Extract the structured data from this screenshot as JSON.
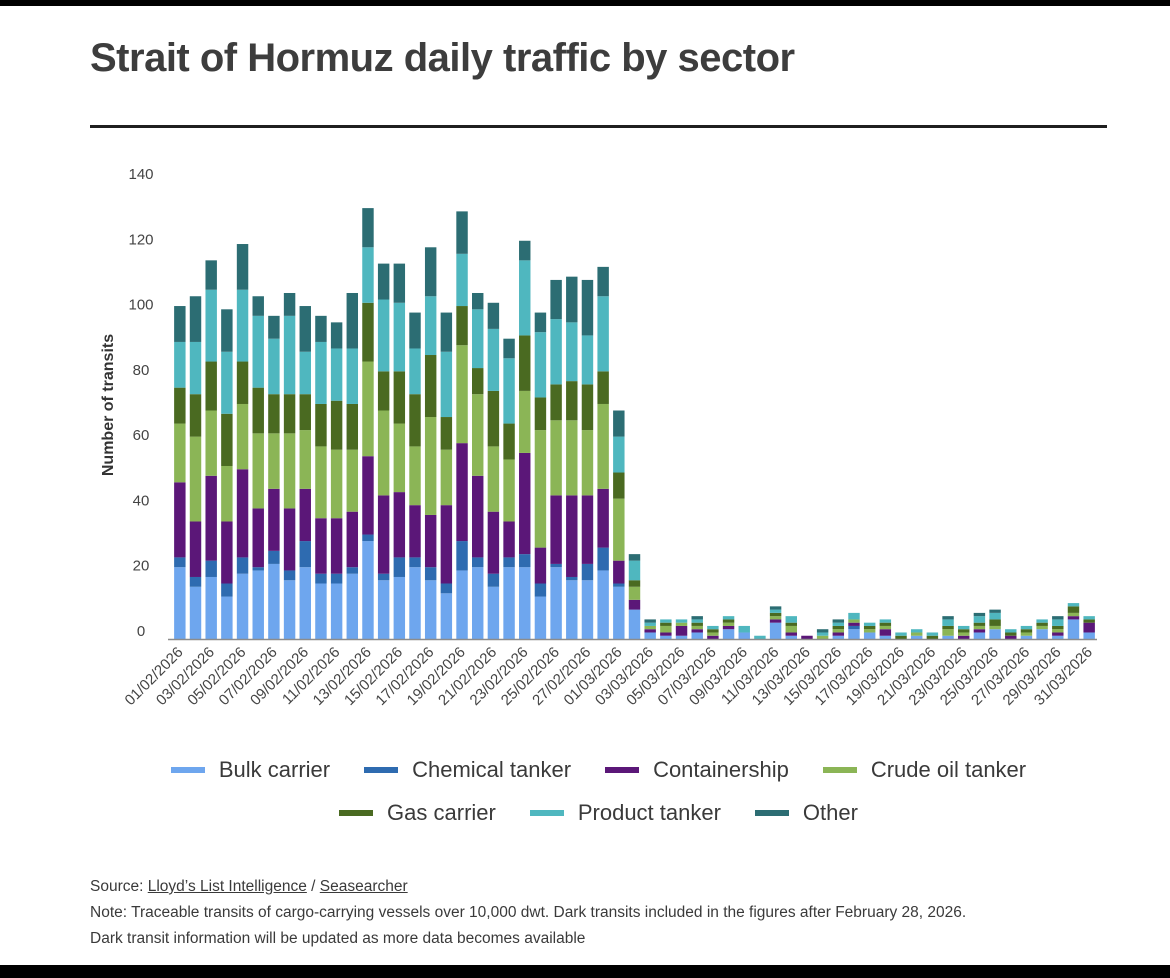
{
  "title": "Strait of Hormuz daily traffic by sector",
  "chart_data": {
    "type": "bar",
    "stacked": true,
    "title": "Strait of Hormuz daily traffic by sector",
    "xlabel": "",
    "ylabel": "Number of transits",
    "ylim": [
      0,
      140
    ],
    "yticks": [
      0,
      20,
      40,
      60,
      80,
      100,
      120,
      140
    ],
    "legend_position": "bottom",
    "categories": [
      "01/02/2026",
      "02/02/2026",
      "03/02/2026",
      "04/02/2026",
      "05/02/2026",
      "06/02/2026",
      "07/02/2026",
      "08/02/2026",
      "09/02/2026",
      "10/02/2026",
      "11/02/2026",
      "12/02/2026",
      "13/02/2026",
      "14/02/2026",
      "15/02/2026",
      "16/02/2026",
      "17/02/2026",
      "18/02/2026",
      "19/02/2026",
      "20/02/2026",
      "21/02/2026",
      "22/02/2026",
      "23/02/2026",
      "24/02/2026",
      "25/02/2026",
      "26/02/2026",
      "27/02/2026",
      "28/02/2026",
      "01/03/2026",
      "02/03/2026",
      "03/03/2026",
      "04/03/2026",
      "05/03/2026",
      "06/03/2026",
      "07/03/2026",
      "08/03/2026",
      "09/03/2026",
      "10/03/2026",
      "11/03/2026",
      "12/03/2026",
      "13/03/2026",
      "14/03/2026",
      "15/03/2026",
      "16/03/2026",
      "17/03/2026",
      "18/03/2026",
      "19/03/2026",
      "20/03/2026",
      "21/03/2026",
      "22/03/2026",
      "23/03/2026",
      "24/03/2026",
      "25/03/2026",
      "26/03/2026",
      "27/03/2026",
      "28/03/2026",
      "29/03/2026",
      "30/03/2026",
      "31/03/2026"
    ],
    "tick_labels": [
      "01/02/2026",
      "03/02/2026",
      "05/02/2026",
      "07/02/2026",
      "09/02/2026",
      "11/02/2026",
      "13/02/2026",
      "15/02/2026",
      "17/02/2026",
      "19/02/2026",
      "21/02/2026",
      "23/02/2026",
      "25/02/2026",
      "27/02/2026",
      "01/03/2026",
      "03/03/2026",
      "05/03/2026",
      "07/03/2026",
      "09/03/2026",
      "11/03/2026",
      "13/03/2026",
      "15/03/2026",
      "17/03/2026",
      "19/03/2026",
      "21/03/2026",
      "23/03/2026",
      "25/03/2026",
      "27/03/2026",
      "29/03/2026",
      "31/03/2026"
    ],
    "series": [
      {
        "name": "Bulk carrier",
        "color": "#6ea6ee",
        "values": [
          22,
          16,
          19,
          13,
          20,
          21,
          23,
          18,
          22,
          17,
          17,
          20,
          30,
          18,
          19,
          22,
          18,
          14,
          21,
          22,
          16,
          22,
          22,
          13,
          22,
          18,
          18,
          21,
          16,
          9,
          2,
          1,
          1,
          2,
          0,
          3,
          2,
          0,
          5,
          1,
          0,
          0,
          1,
          3,
          2,
          1,
          0,
          1,
          0,
          1,
          0,
          2,
          3,
          0,
          1,
          3,
          1,
          6,
          2
        ]
      },
      {
        "name": "Chemical tanker",
        "color": "#2e6bb0",
        "values": [
          3,
          3,
          5,
          4,
          5,
          1,
          4,
          3,
          8,
          3,
          3,
          2,
          2,
          2,
          6,
          3,
          4,
          3,
          9,
          3,
          4,
          3,
          4,
          4,
          1,
          1,
          5,
          7,
          1,
          0,
          0,
          0,
          0,
          0,
          0,
          0,
          0,
          0,
          0,
          0,
          0,
          0,
          0,
          1,
          0,
          0,
          0,
          0,
          0,
          0,
          0,
          0,
          0,
          0,
          0,
          0,
          0,
          0,
          0
        ]
      },
      {
        "name": "Containership",
        "color": "#5b1778",
        "values": [
          23,
          17,
          26,
          19,
          27,
          18,
          19,
          19,
          16,
          17,
          17,
          17,
          24,
          24,
          20,
          16,
          16,
          24,
          30,
          25,
          19,
          11,
          31,
          11,
          21,
          25,
          21,
          18,
          7,
          3,
          1,
          1,
          3,
          1,
          1,
          1,
          0,
          0,
          1,
          1,
          1,
          0,
          1,
          1,
          0,
          2,
          0,
          0,
          0,
          0,
          1,
          1,
          0,
          1,
          0,
          0,
          1,
          1,
          3
        ]
      },
      {
        "name": "Crude oil tanker",
        "color": "#8bb556",
        "values": [
          18,
          26,
          20,
          17,
          20,
          23,
          17,
          23,
          18,
          22,
          21,
          19,
          29,
          26,
          21,
          18,
          30,
          17,
          30,
          25,
          20,
          19,
          19,
          36,
          23,
          23,
          20,
          26,
          19,
          4,
          1,
          2,
          1,
          1,
          1,
          1,
          0,
          0,
          1,
          2,
          0,
          1,
          1,
          1,
          1,
          1,
          0,
          1,
          0,
          2,
          1,
          1,
          1,
          0,
          1,
          1,
          1,
          1,
          0
        ]
      },
      {
        "name": "Gas carrier",
        "color": "#4a6a21",
        "values": [
          11,
          13,
          15,
          16,
          13,
          14,
          12,
          12,
          11,
          13,
          15,
          14,
          18,
          12,
          16,
          16,
          19,
          10,
          12,
          8,
          17,
          11,
          17,
          10,
          11,
          12,
          14,
          10,
          8,
          2,
          0,
          1,
          0,
          1,
          1,
          1,
          0,
          0,
          1,
          1,
          0,
          0,
          1,
          0,
          1,
          1,
          1,
          0,
          1,
          1,
          1,
          1,
          2,
          1,
          1,
          1,
          1,
          2,
          1
        ]
      },
      {
        "name": "Product tanker",
        "color": "#4fb7bf",
        "values": [
          14,
          16,
          22,
          19,
          22,
          22,
          17,
          24,
          13,
          19,
          16,
          17,
          17,
          22,
          21,
          14,
          18,
          20,
          16,
          18,
          19,
          20,
          23,
          20,
          20,
          18,
          15,
          23,
          11,
          6,
          1,
          1,
          1,
          1,
          1,
          1,
          2,
          1,
          1,
          2,
          0,
          1,
          1,
          2,
          1,
          1,
          1,
          1,
          1,
          2,
          1,
          2,
          2,
          1,
          1,
          1,
          2,
          1,
          1
        ]
      },
      {
        "name": "Other",
        "color": "#2c6d73",
        "values": [
          11,
          14,
          9,
          13,
          14,
          6,
          7,
          7,
          14,
          8,
          8,
          17,
          12,
          11,
          12,
          11,
          15,
          12,
          13,
          5,
          8,
          6,
          6,
          6,
          12,
          14,
          17,
          9,
          8,
          2,
          1,
          0,
          0,
          1,
          0,
          0,
          0,
          0,
          1,
          0,
          0,
          1,
          1,
          0,
          0,
          0,
          0,
          0,
          0,
          1,
          0,
          1,
          1,
          0,
          0,
          0,
          1,
          0,
          0
        ]
      }
    ]
  },
  "legend": {
    "row1": [
      "Bulk carrier",
      "Chemical tanker",
      "Containership",
      "Crude oil tanker"
    ],
    "row2": [
      "Gas carrier",
      "Product tanker",
      "Other"
    ]
  },
  "footer": {
    "source_prefix": "Source: ",
    "source_link1": "Lloyd’s List Intelligence",
    "source_sep": " / ",
    "source_link2": "Seasearcher",
    "note1": "Note: Traceable transits of cargo-carrying vessels over 10,000 dwt. Dark transits included in the figures after February 28, 2026.",
    "note2": "Dark transit information will be updated as more data becomes available"
  }
}
